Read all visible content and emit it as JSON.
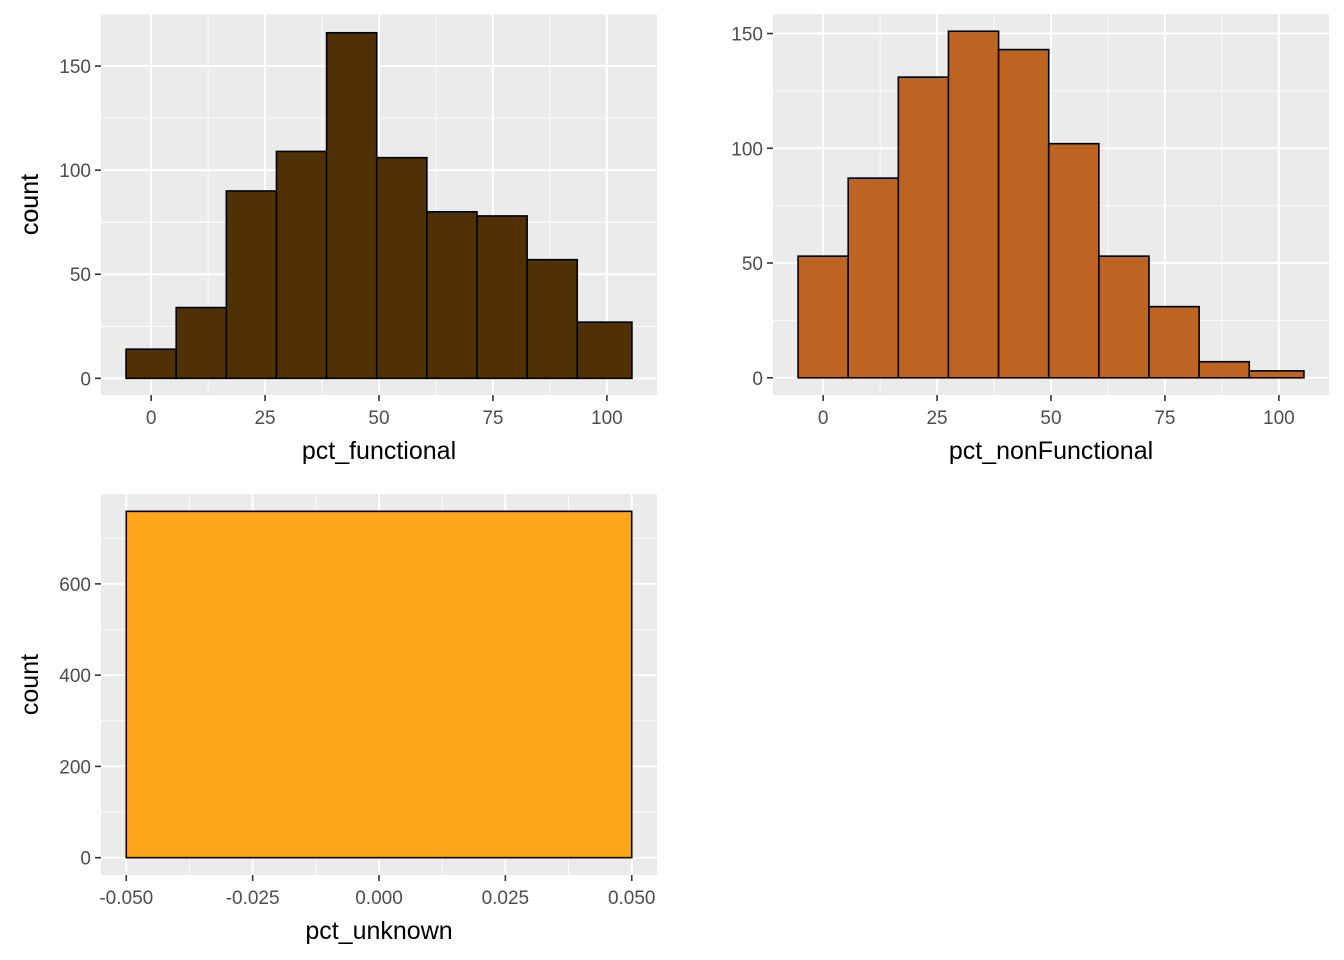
{
  "chart_data": [
    {
      "type": "bar",
      "subtype": "histogram",
      "xlabel": "pct_functional",
      "ylabel": "count",
      "fill_color": "#4f3105",
      "bin_edges": [
        -5.5,
        5.5,
        16.5,
        27.5,
        38.5,
        49.5,
        60.5,
        71.5,
        82.5,
        93.5,
        105.5
      ],
      "values": [
        14,
        34,
        90,
        109,
        166,
        106,
        80,
        78,
        57,
        27
      ],
      "xlim": [
        -11,
        111
      ],
      "ylim": [
        -8,
        175
      ],
      "x_ticks": [
        0,
        25,
        50,
        75,
        100
      ],
      "x_tick_labels": [
        "0",
        "25",
        "50",
        "75",
        "100"
      ],
      "y_ticks": [
        0,
        50,
        100,
        150
      ],
      "y_tick_labels": [
        "0",
        "50",
        "100",
        "150"
      ],
      "grid": true
    },
    {
      "type": "bar",
      "subtype": "histogram",
      "xlabel": "pct_nonFunctional",
      "ylabel": "count",
      "fill_color": "#be6422",
      "bin_edges": [
        -5.5,
        5.5,
        16.5,
        27.5,
        38.5,
        49.5,
        60.5,
        71.5,
        82.5,
        93.5,
        105.5
      ],
      "values": [
        53,
        87,
        131,
        151,
        143,
        102,
        53,
        31,
        7,
        3
      ],
      "xlim": [
        -11,
        111
      ],
      "ylim": [
        -7.5,
        158.5
      ],
      "x_ticks": [
        0,
        25,
        50,
        75,
        100
      ],
      "x_tick_labels": [
        "0",
        "25",
        "50",
        "75",
        "100"
      ],
      "y_ticks": [
        0,
        50,
        100,
        150
      ],
      "y_tick_labels": [
        "0",
        "50",
        "100",
        "150"
      ],
      "grid": true
    },
    {
      "type": "bar",
      "subtype": "histogram",
      "xlabel": "pct_unknown",
      "ylabel": "count",
      "fill_color": "#fea51a",
      "bin_edges": [
        -0.05,
        0.05
      ],
      "values": [
        759
      ],
      "xlim": [
        -0.055,
        0.055
      ],
      "ylim": [
        -38,
        797
      ],
      "x_ticks": [
        -0.05,
        -0.025,
        0,
        0.025,
        0.05
      ],
      "x_tick_labels": [
        "-0.050",
        "-0.025",
        "0.000",
        "0.025",
        "0.050"
      ],
      "y_ticks": [
        0,
        200,
        400,
        600
      ],
      "y_tick_labels": [
        "0",
        "200",
        "400",
        "600"
      ],
      "grid": true
    }
  ]
}
